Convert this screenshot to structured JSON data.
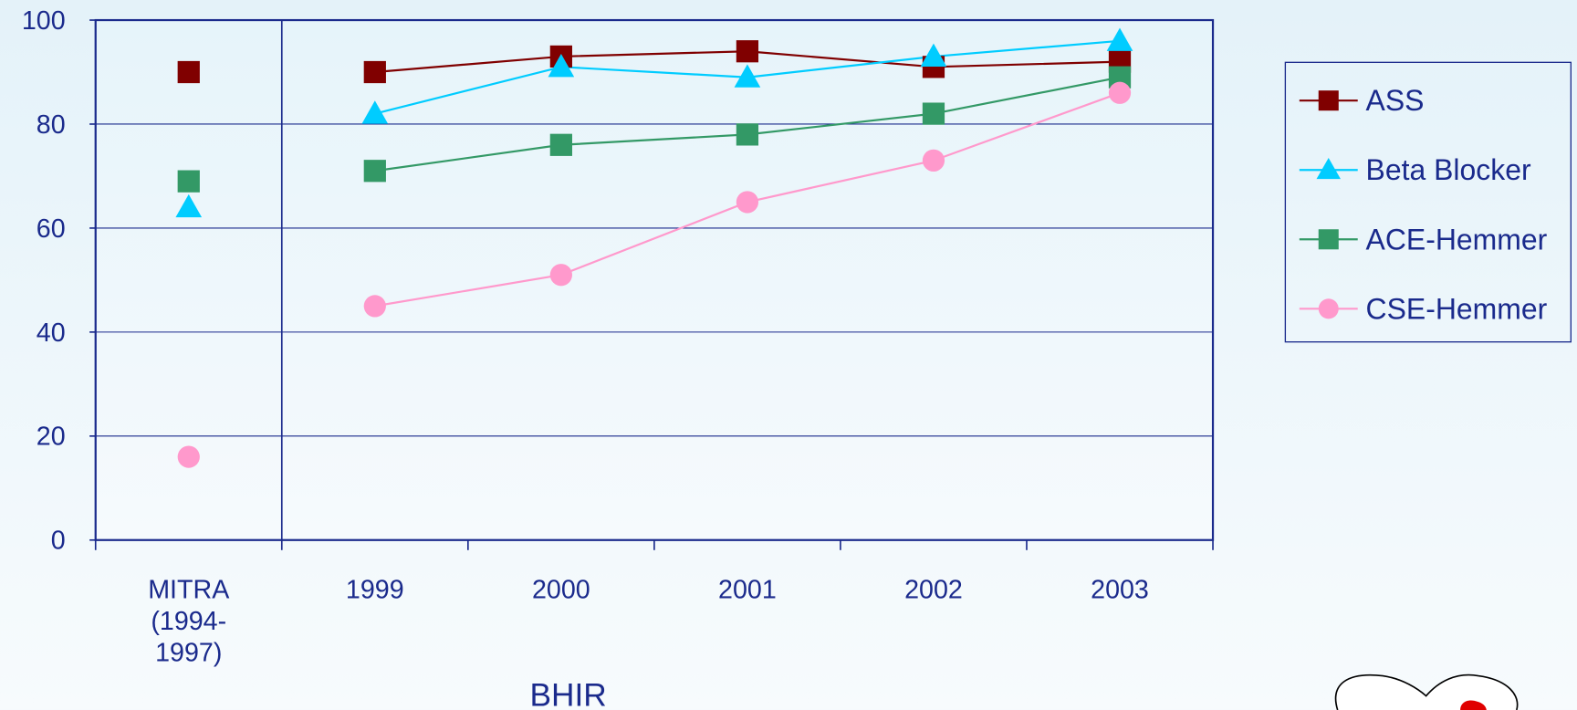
{
  "chart_data": {
    "type": "line",
    "x_label": "BHIR",
    "categories": [
      "MITRA\n(1994-\n1997)",
      "1999",
      "2000",
      "2001",
      "2002",
      "2003"
    ],
    "divider_after_category": 0,
    "ylim": [
      0,
      100
    ],
    "yticks": [
      0,
      20,
      40,
      60,
      80,
      100
    ],
    "grid": true,
    "legend": "right",
    "series": [
      {
        "name": "ASS",
        "color": "#800000",
        "marker": "square",
        "values": [
          90,
          90,
          93,
          94,
          91,
          92
        ]
      },
      {
        "name": "Beta Blocker",
        "color": "#00ccff",
        "marker": "triangle",
        "values": [
          64,
          82,
          91,
          89,
          93,
          96
        ]
      },
      {
        "name": "ACE-Hemmer",
        "color": "#339966",
        "marker": "square",
        "values": [
          69,
          71,
          76,
          78,
          82,
          89
        ]
      },
      {
        "name": "CSE-Hemmer",
        "color": "#ff99cc",
        "marker": "circle",
        "values": [
          16,
          45,
          51,
          65,
          73,
          86
        ]
      }
    ]
  }
}
